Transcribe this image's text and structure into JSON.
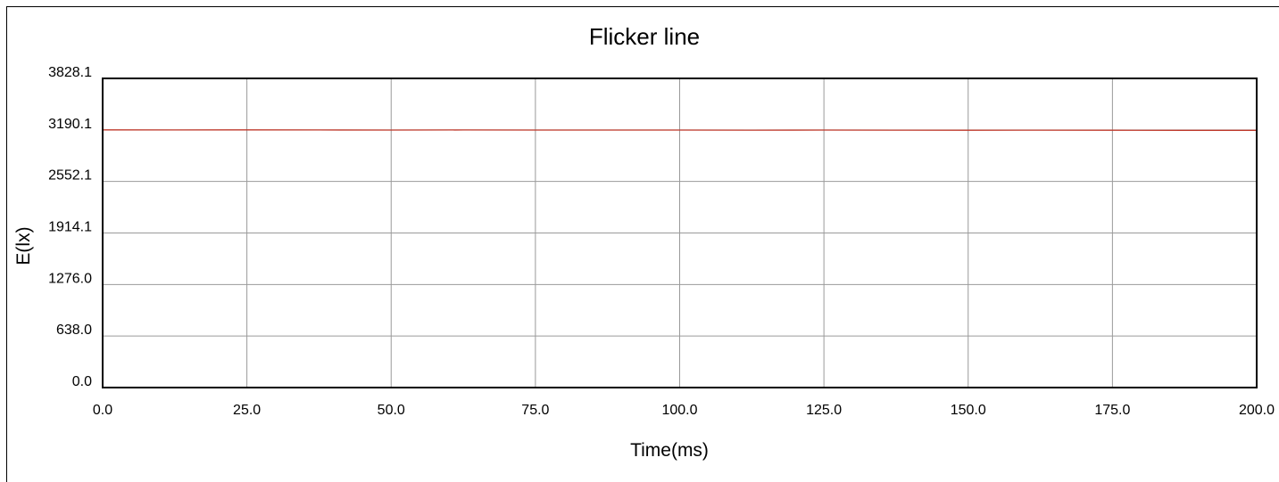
{
  "chart_data": {
    "type": "line",
    "title": "Flicker line",
    "xlabel": "Time(ms)",
    "ylabel": "E(lx)",
    "xlim": [
      0,
      200
    ],
    "ylim": [
      0,
      3828.1
    ],
    "x_ticks": [
      "0.0",
      "25.0",
      "50.0",
      "75.0",
      "100.0",
      "125.0",
      "150.0",
      "175.0",
      "200.0"
    ],
    "y_ticks": [
      "0.0",
      "638.0",
      "1276.0",
      "1914.1",
      "2552.1",
      "3190.1",
      "3828.1"
    ],
    "grid": true,
    "legend": "none",
    "series": [
      {
        "color": "#c0392b",
        "x": [
          0,
          12.5,
          25,
          37.5,
          50,
          62.5,
          75,
          87.5,
          100,
          112.5,
          125,
          137.5,
          150,
          162.5,
          175,
          187.5,
          200
        ],
        "y": [
          3190,
          3189,
          3190,
          3189,
          3188,
          3189,
          3188,
          3188,
          3188,
          3187,
          3188,
          3187,
          3186,
          3187,
          3186,
          3185,
          3185
        ]
      }
    ]
  }
}
